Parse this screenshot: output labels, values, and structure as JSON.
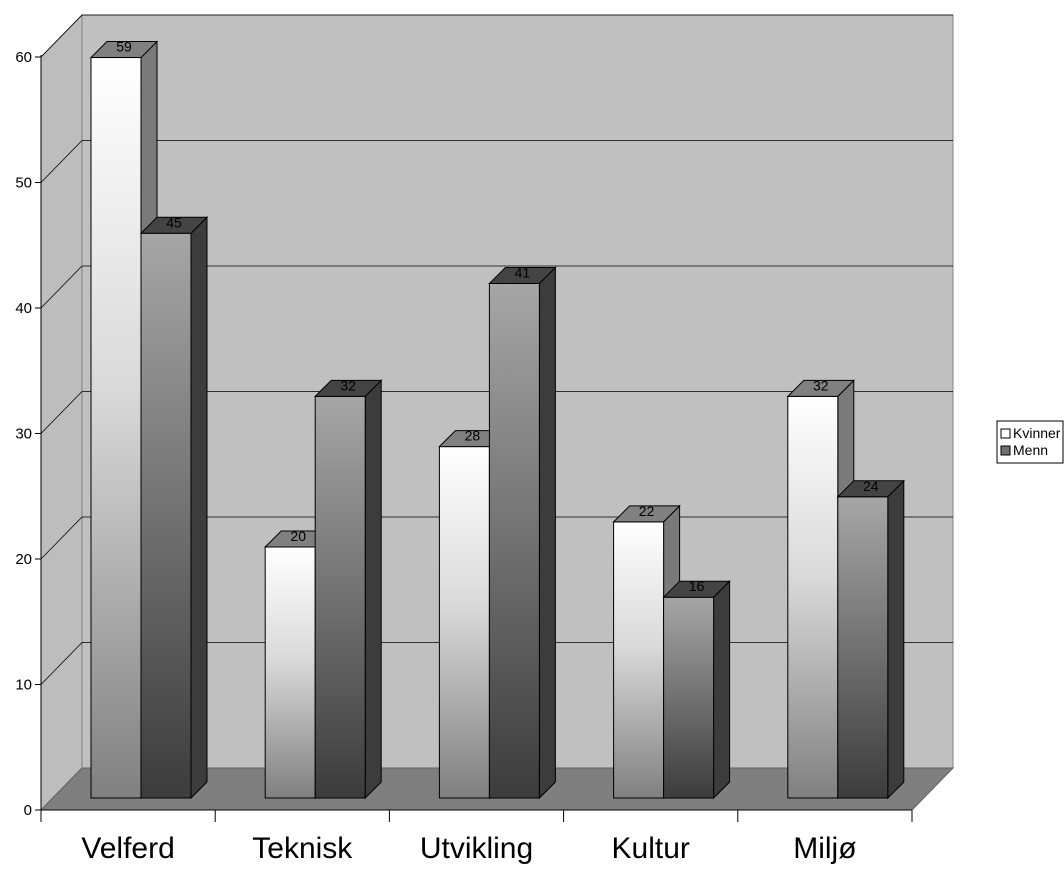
{
  "chart_data": {
    "type": "bar",
    "title": "",
    "xlabel": "",
    "ylabel": "",
    "categories": [
      "Velferd",
      "Teknisk",
      "Utvikling",
      "Kultur",
      "Miljø"
    ],
    "series": [
      {
        "name": "Kvinner",
        "values": [
          59,
          20,
          28,
          22,
          32
        ]
      },
      {
        "name": "Menn",
        "values": [
          45,
          32,
          41,
          16,
          24
        ]
      }
    ],
    "ylim": [
      0,
      60
    ],
    "yticks": [
      0,
      10,
      20,
      30,
      40,
      50,
      60
    ],
    "grid": true,
    "legend": "right",
    "three_d": true,
    "colors": {
      "wall": "#c0c0c0",
      "floor": "#7f7f7f",
      "kvinner_top": "#ffffff",
      "kvinner_bottom": "#808080",
      "menn_top": "#a6a6a6",
      "menn_bottom": "#404040"
    }
  }
}
